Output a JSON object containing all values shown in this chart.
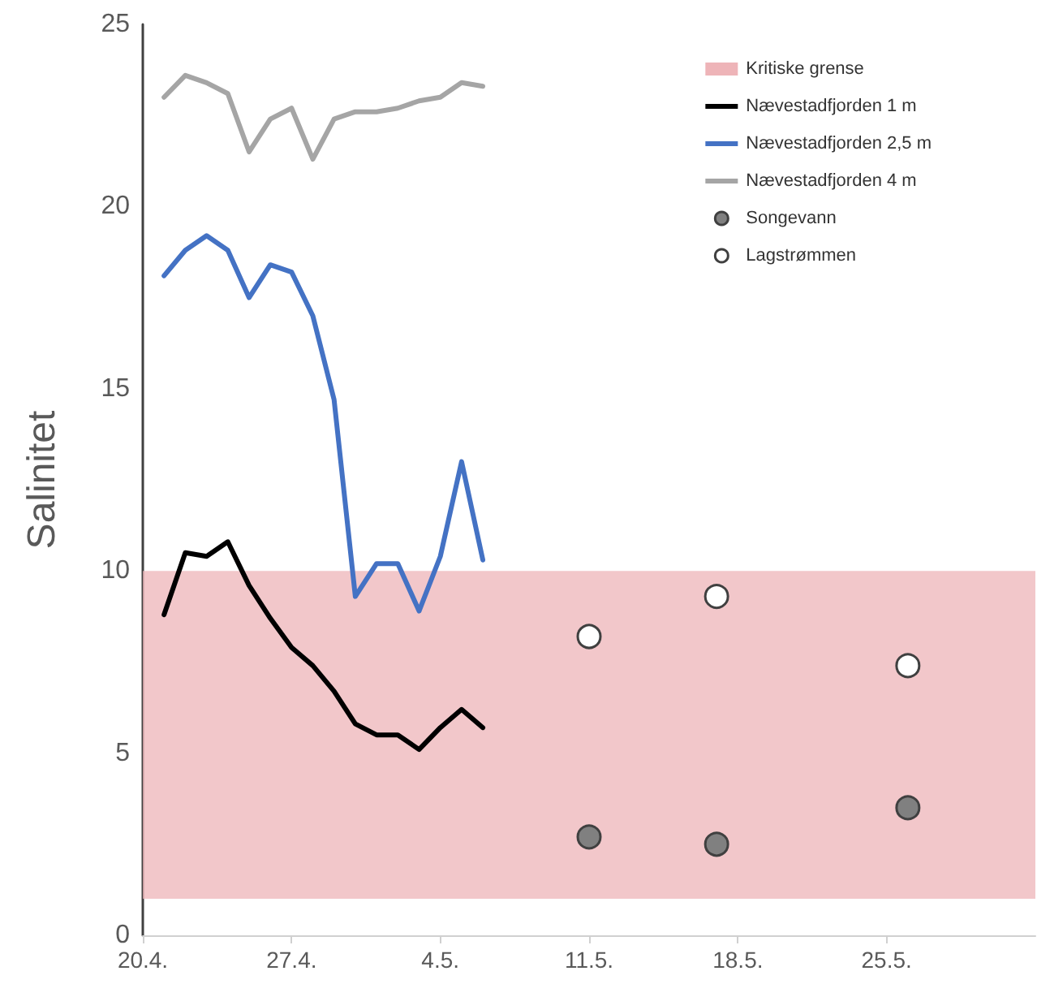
{
  "chart_data": {
    "type": "line",
    "ylabel": "Salinitet",
    "xlim": [
      "--04-20",
      "--06-01"
    ],
    "xticks": [
      {
        "value": "--04-20",
        "label": "20.4."
      },
      {
        "value": "--04-27",
        "label": "27.4."
      },
      {
        "value": "--05-04",
        "label": "4.5."
      },
      {
        "value": "--05-11",
        "label": "11.5."
      },
      {
        "value": "--05-18",
        "label": "18.5."
      },
      {
        "value": "--05-25",
        "label": "25.5."
      }
    ],
    "ylim": [
      0,
      25
    ],
    "yticks": [
      0,
      5,
      10,
      15,
      20,
      25
    ],
    "grid": false,
    "legend": "top right",
    "line_style": "solid",
    "marker": "none",
    "x": [
      "--04-21",
      "--04-22",
      "--04-23",
      "--04-24",
      "--04-25",
      "--04-26",
      "--04-27",
      "--04-28",
      "--04-29",
      "--04-30",
      "--05-01",
      "--05-02",
      "--05-03",
      "--05-04",
      "--05-05",
      "--05-06"
    ],
    "bands": [
      {
        "axis": "y",
        "from": 1,
        "to": 10,
        "label": "Kritiske grense",
        "color": "#eeb4b8"
      }
    ],
    "series": [
      {
        "name": "Nævestadfjorden 1 m",
        "color": "#000000",
        "values": [
          8.8,
          10.5,
          10.4,
          10.8,
          9.6,
          8.7,
          7.9,
          7.4,
          6.7,
          5.8,
          5.5,
          5.5,
          5.1,
          5.7,
          6.2,
          5.7
        ]
      },
      {
        "name": "Nævestadfjorden 2,5 m",
        "color": "#4472c4",
        "values": [
          18.1,
          18.8,
          19.2,
          18.8,
          17.5,
          18.4,
          18.2,
          17.0,
          14.7,
          9.3,
          10.2,
          10.2,
          8.9,
          10.4,
          13.0,
          10.3
        ]
      },
      {
        "name": "Nævestadfjorden 4 m",
        "color": "#a5a5a5",
        "values": [
          23.0,
          23.6,
          23.4,
          23.1,
          21.5,
          22.4,
          22.7,
          21.3,
          22.4,
          22.6,
          22.6,
          22.7,
          22.9,
          23.0,
          23.4,
          23.3
        ]
      },
      {
        "name": "Songevann",
        "type": "scatter",
        "marker": "circle",
        "color": "#808080",
        "x": [
          "--05-11",
          "--05-17",
          "--05-26"
        ],
        "values": [
          2.7,
          2.5,
          3.5
        ]
      },
      {
        "name": "Lagstrømmen",
        "type": "scatter",
        "marker": "circle",
        "color": "#ffffff",
        "x": [
          "--05-11",
          "--05-17",
          "--05-26"
        ],
        "values": [
          8.2,
          9.3,
          7.4
        ]
      }
    ]
  }
}
